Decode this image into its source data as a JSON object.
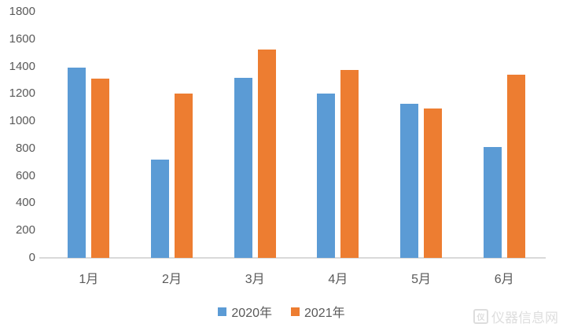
{
  "chart_data": {
    "type": "bar",
    "title": "",
    "xlabel": "",
    "ylabel": "",
    "categories": [
      "1月",
      "2月",
      "3月",
      "4月",
      "5月",
      "6月"
    ],
    "series": [
      {
        "name": "2020年",
        "color": "#5B9BD5",
        "values": [
          1390,
          720,
          1320,
          1200,
          1130,
          810
        ]
      },
      {
        "name": "2021年",
        "color": "#ED7D31",
        "values": [
          1310,
          1205,
          1525,
          1375,
          1095,
          1340
        ]
      }
    ],
    "ylim": [
      0,
      1800
    ],
    "yticks": [
      0,
      200,
      400,
      600,
      800,
      1000,
      1200,
      1400,
      1600,
      1800
    ],
    "grid": false,
    "legend_position": "bottom"
  },
  "watermark": {
    "text": "仪器信息网",
    "logo_glyph": "仪"
  },
  "colors": {
    "axis_line": "#d9d9d9",
    "tick_text": "#595959",
    "background": "#ffffff",
    "watermark": "#bcbcbc"
  }
}
